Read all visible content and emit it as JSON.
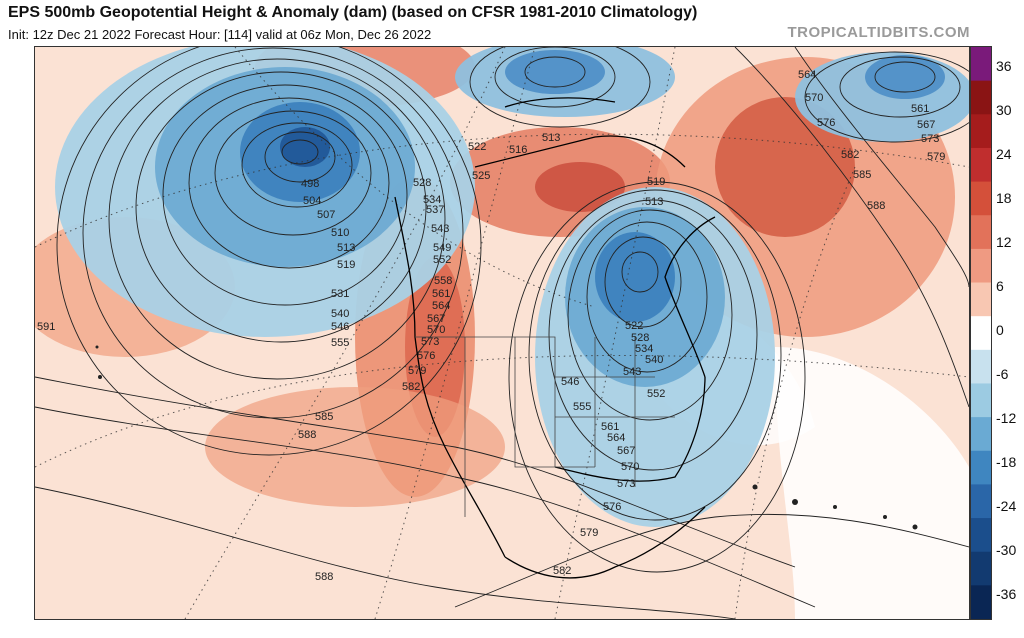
{
  "header": {
    "title": "EPS 500mb Geopotential Height & Anomaly (dam) (based on CFSR 1981-2010 Climatology)",
    "subtitle": "Init: 12z Dec 21 2022   Forecast Hour: [114]   valid at 06z Mon, Dec 26 2022",
    "brand": "TROPICALTIDBITS.COM"
  },
  "colorbar": {
    "labels": [
      "36",
      "30",
      "24",
      "18",
      "12",
      "6",
      "0",
      "-6",
      "-12",
      "-18",
      "-24",
      "-30",
      "-36"
    ],
    "colors": [
      "#7a1a7a",
      "#8a1414",
      "#a51c1c",
      "#c02e2e",
      "#d4503a",
      "#e2725a",
      "#ef9a82",
      "#f8c7b2",
      "#ffffff",
      "#c8e1ee",
      "#9ccbe2",
      "#6aaad3",
      "#3f86c0",
      "#2a66a8",
      "#1b4e8c",
      "#123a70",
      "#0a2654"
    ]
  },
  "contour_labels": [
    "591",
    "504",
    "498",
    "507",
    "510",
    "513",
    "519",
    "531",
    "540",
    "546",
    "555",
    "528",
    "534",
    "537",
    "543",
    "549",
    "552",
    "558",
    "561",
    "564",
    "567",
    "570",
    "573",
    "576",
    "579",
    "582",
    "585",
    "588",
    "588",
    "525",
    "522",
    "516",
    "513",
    "519",
    "513",
    "522",
    "528",
    "534",
    "540",
    "546",
    "543",
    "552",
    "555",
    "561",
    "564",
    "567",
    "570",
    "573",
    "576",
    "579",
    "582",
    "564",
    "570",
    "576",
    "582",
    "585",
    "588",
    "561",
    "567",
    "573",
    "579"
  ]
}
